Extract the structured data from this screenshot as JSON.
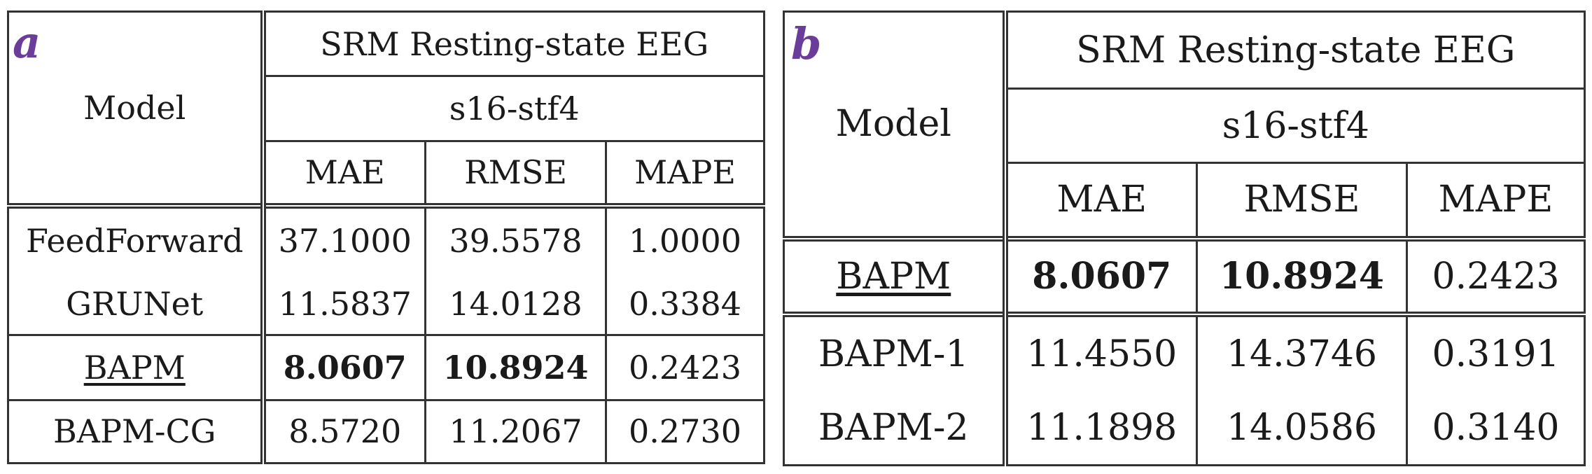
{
  "panels": [
    {
      "letter": "a",
      "model_header": "Model",
      "dataset": "SRM Resting-state EEG",
      "subset": "s16-stf4",
      "metrics": [
        "MAE",
        "RMSE",
        "MAPE"
      ],
      "rows": [
        {
          "model": "FeedForward",
          "mae": "37.1000",
          "rmse": "39.5578",
          "mape": "1.0000"
        },
        {
          "model": "GRUNet",
          "mae": "11.5837",
          "rmse": "14.0128",
          "mape": "0.3384"
        },
        {
          "model": "BAPM",
          "mae": "8.0607",
          "rmse": "10.8924",
          "mape": "0.2423"
        },
        {
          "model": "BAPM-CG",
          "mae": "8.5720",
          "rmse": "11.2067",
          "mape": "0.2730"
        }
      ]
    },
    {
      "letter": "b",
      "model_header": "Model",
      "dataset": "SRM Resting-state EEG",
      "subset": "s16-stf4",
      "metrics": [
        "MAE",
        "RMSE",
        "MAPE"
      ],
      "rows": [
        {
          "model": "BAPM",
          "mae": "8.0607",
          "rmse": "10.8924",
          "mape": "0.2423"
        },
        {
          "model": "BAPM-1",
          "mae": "11.4550",
          "rmse": "14.3746",
          "mape": "0.3191"
        },
        {
          "model": "BAPM-2",
          "mae": "11.1898",
          "rmse": "14.0586",
          "mape": "0.3140"
        }
      ]
    }
  ]
}
